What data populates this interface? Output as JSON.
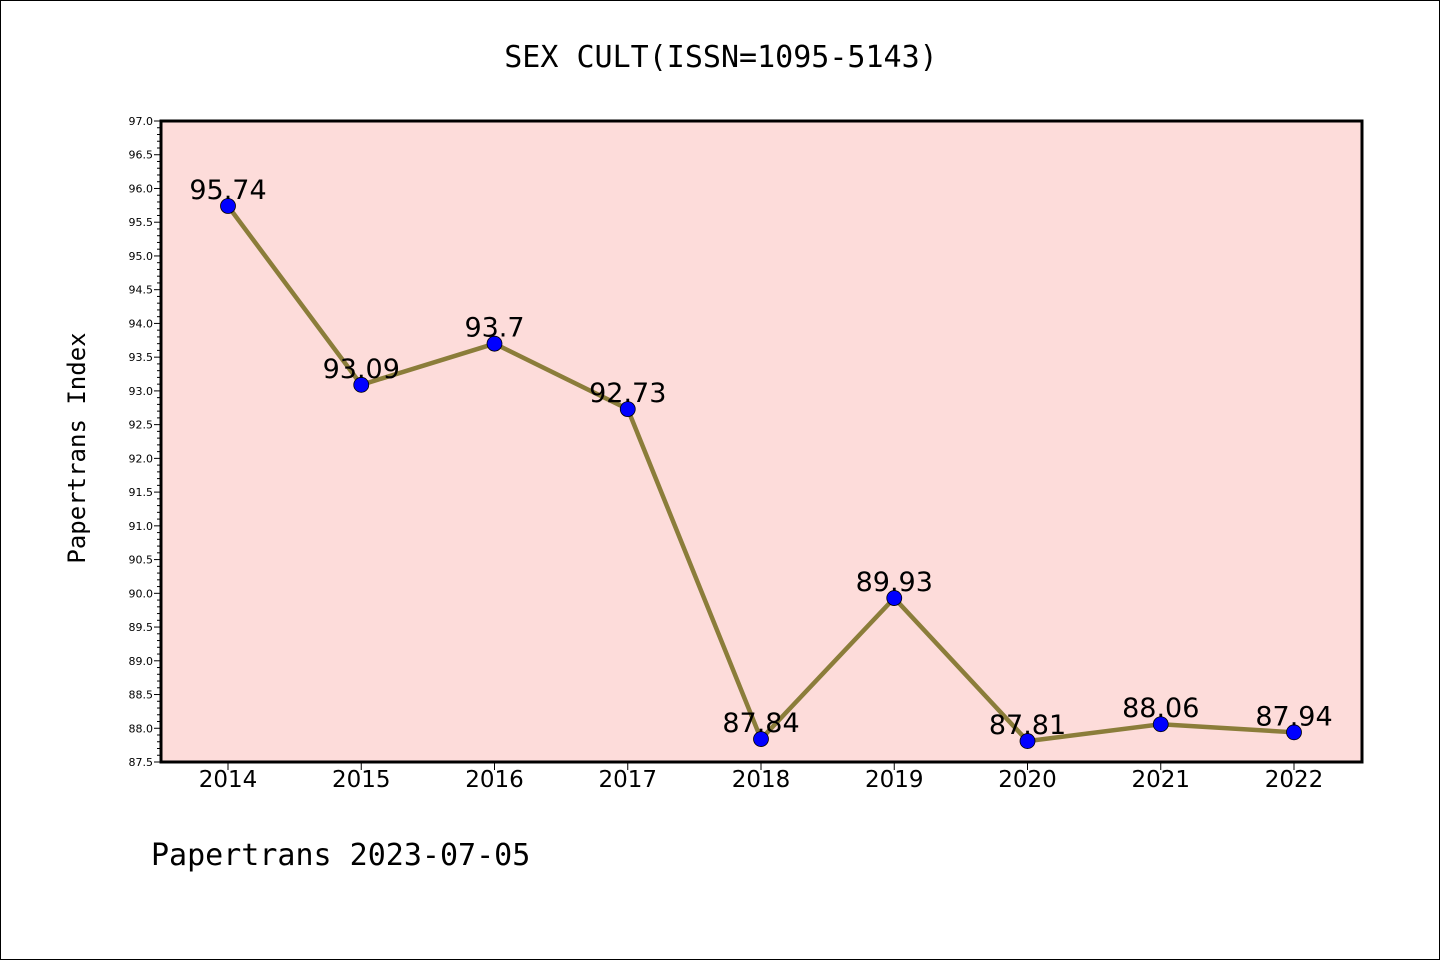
{
  "chart_data": {
    "type": "line",
    "title": "SEX CULT(ISSN=1095-5143)",
    "xlabel": "",
    "ylabel": "Papertrans Index",
    "categories": [
      "2014",
      "2015",
      "2016",
      "2017",
      "2018",
      "2019",
      "2020",
      "2021",
      "2022"
    ],
    "series": [
      {
        "values": [
          95.74,
          93.09,
          93.7,
          92.73,
          87.84,
          89.93,
          87.81,
          88.06,
          87.94
        ],
        "data_labels": [
          "95.74",
          "93.09",
          "93.7",
          "92.73",
          "87.84",
          "89.93",
          "87.81",
          "88.06",
          "87.94"
        ],
        "line_color": "#8b7d3a",
        "marker_color": "#0000ff"
      }
    ],
    "ylim": [
      87.5,
      97.0
    ],
    "y_ticks": [
      "87.5",
      "88.0",
      "88.5",
      "89.0",
      "89.5",
      "90.0",
      "90.5",
      "91.0",
      "91.5",
      "92.0",
      "92.5",
      "93.0",
      "93.5",
      "94.0",
      "94.5",
      "95.0",
      "95.5",
      "96.0",
      "96.5",
      "97.0"
    ],
    "grid": false,
    "plot_background": "#fddcda",
    "footer": "Papertrans 2023-07-05"
  }
}
